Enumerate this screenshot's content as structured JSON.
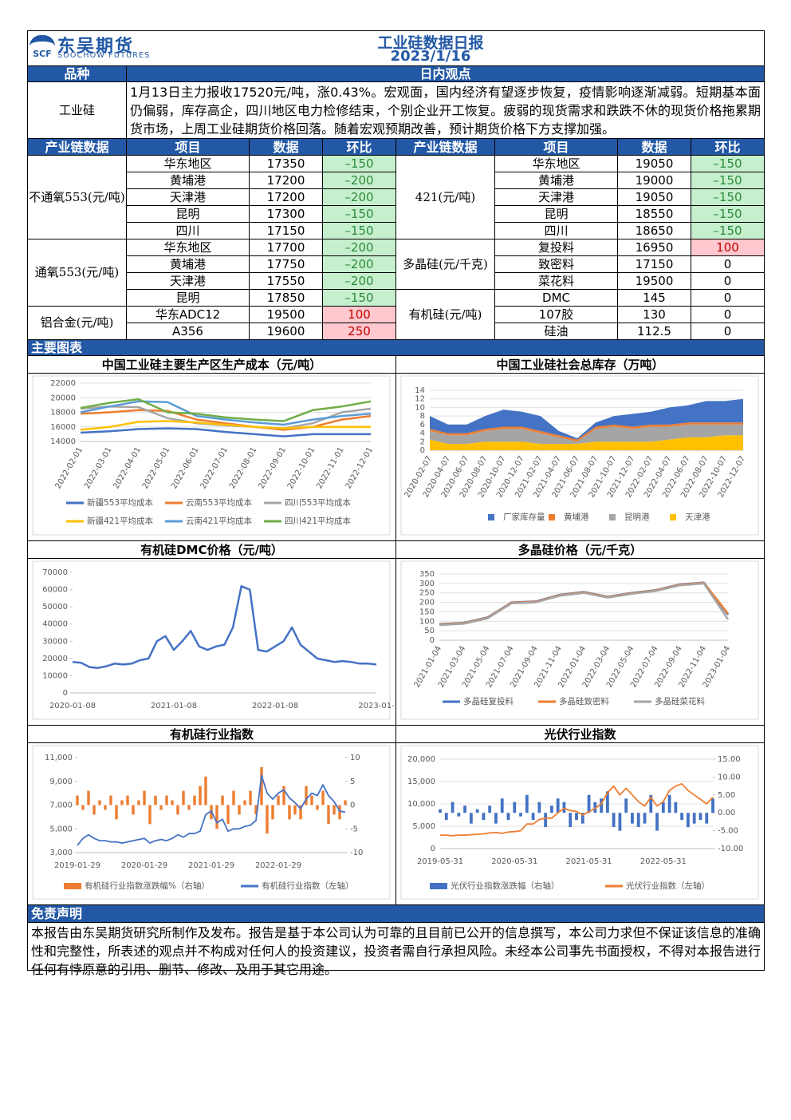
{
  "header": {
    "logo_mark": "SCF",
    "logo_cn": "东吴期货",
    "logo_en": "SOOCHOW FUTURES",
    "title": "工业硅数据日报",
    "date": "2023/1/16"
  },
  "sections": {
    "variety": "品种",
    "viewpoint": "日内观点",
    "charts": "主要图表",
    "disclaimer": "免责声明"
  },
  "viewpoint": {
    "product": "工业硅",
    "text": "1月13日主力报收17520元/吨，涨0.43%。宏观面，国内经济有望逐步恢复，疫情影响逐渐减弱。短期基本面仍偏弱，库存高企，四川地区电力检修结束，个别企业开工恢复。疲弱的现货需求和跌跌不休的现货价格拖累期货市场，上周工业硅期货价格回落。随着宏观预期改善，预计期货价格下方支撑加强。"
  },
  "table": {
    "headers": [
      "产业链数据",
      "项目",
      "数据",
      "环比"
    ],
    "left": [
      {
        "name": "不通氧553(元/吨)",
        "rows": [
          [
            "华东地区",
            17350,
            "–150"
          ],
          [
            "黄埔港",
            17200,
            "–200"
          ],
          [
            "天津港",
            17200,
            "–200"
          ],
          [
            "昆明",
            17300,
            "–150"
          ],
          [
            "四川",
            17150,
            "–150"
          ]
        ]
      },
      {
        "name": "通氧553(元/吨)",
        "rows": [
          [
            "华东地区",
            17700,
            "–200"
          ],
          [
            "黄埔港",
            17750,
            "–200"
          ],
          [
            "天津港",
            17550,
            "–200"
          ],
          [
            "昆明",
            17850,
            "–150"
          ]
        ]
      },
      {
        "name": "铝合金(元/吨)",
        "rows": [
          [
            "华东ADC12",
            19500,
            100
          ],
          [
            "A356",
            19600,
            250
          ]
        ]
      }
    ],
    "right": [
      {
        "name": "421(元/吨)",
        "rows": [
          [
            "华东地区",
            19050,
            "–150"
          ],
          [
            "黄埔港",
            19000,
            "–150"
          ],
          [
            "天津港",
            19050,
            "–150"
          ],
          [
            "昆明",
            18550,
            "–150"
          ],
          [
            "四川",
            18650,
            "–150"
          ]
        ]
      },
      {
        "name": "多晶硅(元/千克)",
        "rows": [
          [
            "复投料",
            16950,
            100
          ],
          [
            "致密料",
            17150,
            0
          ],
          [
            "菜花料",
            19500,
            0
          ]
        ]
      },
      {
        "name": "有机硅(元/吨)",
        "rows": [
          [
            "DMC",
            145,
            0
          ],
          [
            "107胶",
            130,
            0
          ],
          [
            "硅油",
            112.5,
            0
          ]
        ]
      }
    ]
  },
  "chart_data": [
    {
      "type": "line",
      "title": "中国工业硅主要生产区生产成本（元/吨）",
      "grid": true,
      "categories": [
        "2022-02-01",
        "2022-03-01",
        "2022-04-01",
        "2022-05-01",
        "2022-06-01",
        "2022-07-01",
        "2022-08-01",
        "2022-09-01",
        "2022-10-01",
        "2022-11-01",
        "2022-12-01"
      ],
      "ylim": [
        14000,
        22000
      ],
      "yticks": [
        14000,
        16000,
        18000,
        20000,
        22000
      ],
      "series": [
        {
          "name": "新疆553平均成本",
          "color": "#4472c4",
          "values": [
            15200,
            15400,
            15700,
            15800,
            15700,
            15300,
            15000,
            14700,
            15000,
            15000,
            15000
          ]
        },
        {
          "name": "云南553平均成本",
          "color": "#ed7d31",
          "values": [
            17800,
            18000,
            18300,
            18200,
            17000,
            16500,
            16000,
            15600,
            16000,
            17000,
            17500
          ]
        },
        {
          "name": "四川553平均成本",
          "color": "#a5a5a5",
          "values": [
            18500,
            18800,
            18700,
            17200,
            16500,
            16200,
            16000,
            15800,
            16500,
            18000,
            18500
          ]
        },
        {
          "name": "新疆421平均成本",
          "color": "#ffc000",
          "values": [
            15600,
            16000,
            16700,
            16800,
            16600,
            16300,
            16000,
            15800,
            16000,
            16000,
            16000
          ]
        },
        {
          "name": "云南421平均成本",
          "color": "#5b9bd5",
          "values": [
            18000,
            18800,
            19500,
            19400,
            17500,
            17000,
            16600,
            16300,
            17000,
            17500,
            17800
          ]
        },
        {
          "name": "四川421平均成本",
          "color": "#70ad47",
          "values": [
            18600,
            19300,
            19800,
            18000,
            17800,
            17300,
            17000,
            16800,
            18300,
            18800,
            19500
          ]
        }
      ]
    },
    {
      "type": "area",
      "stacked": true,
      "title": "中国工业硅社会总库存（万吨）",
      "grid": true,
      "categories": [
        "2020-02-07",
        "2020-04-07",
        "2020-06-07",
        "2020-08-07",
        "2020-10-07",
        "2020-12-07",
        "2021-02-07",
        "2021-04-07",
        "2021-06-07",
        "2021-08-07",
        "2021-10-07",
        "2021-12-07",
        "2022-02-07",
        "2022-04-07",
        "2022-06-07",
        "2022-08-07",
        "2022-10-07",
        "2022-12-07"
      ],
      "ylim": [
        0,
        14
      ],
      "yticks": [
        0,
        2,
        4,
        6,
        8,
        10,
        12,
        14
      ],
      "series": [
        {
          "name": "厂家库存量",
          "color": "#4472c4",
          "values": [
            3,
            2,
            2,
            3,
            4,
            3.5,
            3.5,
            1,
            0.3,
            1,
            2,
            3,
            3,
            4,
            4,
            5,
            5,
            5.5
          ]
        },
        {
          "name": "黄埔港",
          "color": "#ed7d31",
          "values": [
            0.5,
            0.5,
            0.5,
            0.5,
            0.5,
            0.5,
            0.5,
            0.5,
            0.5,
            0.5,
            0.5,
            0.5,
            0.5,
            0.5,
            0.5,
            0.5,
            0.5,
            0.5
          ]
        },
        {
          "name": "昆明港",
          "color": "#a5a5a5",
          "values": [
            2,
            2,
            2,
            2.5,
            3,
            3,
            2.5,
            1.5,
            0.5,
            3,
            3.5,
            3,
            3.5,
            3,
            3,
            3,
            2.5,
            2.5
          ]
        },
        {
          "name": "天津港",
          "color": "#ffc000",
          "values": [
            2.5,
            1.5,
            1.5,
            2,
            2,
            2,
            1.5,
            1.5,
            1.5,
            2,
            2,
            2,
            2,
            2.5,
            3,
            3,
            3.5,
            3.5
          ]
        }
      ]
    },
    {
      "type": "line",
      "title": "有机硅DMC价格（元/吨）",
      "grid": false,
      "categories": [
        "2020-01-08",
        null,
        null,
        null,
        null,
        null,
        null,
        null,
        null,
        null,
        null,
        null,
        "2021-01-08",
        null,
        null,
        null,
        null,
        null,
        null,
        null,
        null,
        null,
        null,
        null,
        "2022-01-08",
        null,
        null,
        null,
        null,
        null,
        null,
        null,
        null,
        null,
        null,
        null,
        "2023-01-"
      ],
      "ylim": [
        0,
        70000
      ],
      "yticks": [
        0,
        10000,
        20000,
        30000,
        40000,
        50000,
        60000,
        70000
      ],
      "series": [
        {
          "color": "#4472c4",
          "values": [
            18000,
            17500,
            15000,
            14500,
            15500,
            17000,
            16500,
            17000,
            19000,
            20000,
            30000,
            33000,
            25000,
            30000,
            36000,
            27000,
            25000,
            27000,
            28000,
            38000,
            62000,
            60000,
            25000,
            24000,
            27000,
            30000,
            38000,
            28000,
            24000,
            20000,
            19000,
            18000,
            18500,
            18000,
            17000,
            17000,
            16500
          ]
        }
      ]
    },
    {
      "type": "line",
      "title": "多晶硅价格（元/千克）",
      "grid": true,
      "categories": [
        "2021-01-04",
        "2021-03-04",
        "2021-05-04",
        "2021-07-04",
        "2021-09-04",
        "2021-11-04",
        "2022-01-04",
        "2022-03-04",
        "2022-05-04",
        "2022-07-04",
        "2022-09-04",
        "2022-11-04",
        "2023-01-04"
      ],
      "ylim": [
        0,
        350
      ],
      "yticks": [
        0,
        50,
        100,
        150,
        200,
        250,
        300,
        350
      ],
      "series": [
        {
          "name": "多晶硅复投料",
          "color": "#4472c4",
          "values": [
            85,
            92,
            120,
            200,
            205,
            240,
            255,
            230,
            250,
            265,
            295,
            305,
            135
          ]
        },
        {
          "name": "多晶硅致密料",
          "color": "#ed7d31",
          "values": [
            83,
            90,
            118,
            198,
            203,
            238,
            253,
            228,
            248,
            263,
            293,
            303,
            140
          ]
        },
        {
          "name": "多晶硅菜花料",
          "color": "#a5a5a5",
          "values": [
            80,
            87,
            115,
            195,
            200,
            235,
            250,
            225,
            245,
            260,
            290,
            300,
            110
          ]
        }
      ]
    },
    {
      "type": "combo",
      "title": "有机硅行业指数",
      "grid": false,
      "categories": [
        "2019-01-29",
        null,
        null,
        null,
        null,
        null,
        null,
        null,
        null,
        null,
        null,
        null,
        "2020-01-29",
        null,
        null,
        null,
        null,
        null,
        null,
        null,
        null,
        null,
        null,
        null,
        "2021-01-29",
        null,
        null,
        null,
        null,
        null,
        null,
        null,
        null,
        null,
        null,
        null,
        "2022-01-29",
        null,
        null,
        null,
        null,
        null,
        null,
        null,
        null,
        null,
        null,
        null,
        null
      ],
      "ylim": [
        3000,
        11000
      ],
      "yticks": [
        {
          "value": 3000,
          "label": "3,000"
        },
        {
          "value": 5000,
          "label": "5,000"
        },
        {
          "value": 7000,
          "label": "7,000"
        },
        {
          "value": 9000,
          "label": "9,000"
        },
        {
          "value": 11000,
          "label": "11,000"
        }
      ],
      "y2lim": [
        -10,
        10
      ],
      "y2ticks": [
        -10,
        -5,
        0,
        5,
        10
      ],
      "series": [
        {
          "name": "有机硅行业指数涨跌幅%（右轴）",
          "type": "bar",
          "axis": "y2",
          "color": "#ed7d31",
          "values": [
            2,
            -1,
            3,
            -2,
            1,
            -1,
            2,
            -3,
            1,
            2,
            -2,
            1,
            3,
            -4,
            2,
            -1,
            2,
            1,
            -2,
            3,
            -1,
            2,
            4,
            6,
            -3,
            -5,
            2,
            -4,
            3,
            -2,
            1,
            3,
            -2,
            8,
            -6,
            -3,
            2,
            4,
            -3,
            -2,
            -3,
            4,
            2,
            -1,
            3,
            -4,
            -2,
            -3,
            1
          ]
        },
        {
          "name": "有机硅行业指数（左轴）",
          "type": "line",
          "color": "#4472c4",
          "values": [
            3600,
            4200,
            4500,
            4200,
            4000,
            4000,
            3900,
            3900,
            3800,
            3900,
            4000,
            4100,
            4200,
            3800,
            4000,
            4100,
            4000,
            4200,
            4500,
            4300,
            4600,
            4600,
            4800,
            6200,
            6500,
            5500,
            5800,
            4800,
            5000,
            5000,
            5200,
            5300,
            5700,
            9500,
            8000,
            7500,
            8000,
            8300,
            7600,
            7200,
            6700,
            7500,
            8000,
            7800,
            8700,
            7800,
            7300,
            6500,
            6400
          ]
        }
      ]
    },
    {
      "type": "combo",
      "title": "光伏行业指数",
      "grid": true,
      "categories": [
        "2019-05-31",
        null,
        null,
        null,
        null,
        null,
        null,
        null,
        null,
        null,
        null,
        null,
        "2020-05-31",
        null,
        null,
        null,
        null,
        null,
        null,
        null,
        null,
        null,
        null,
        null,
        "2021-05-31",
        null,
        null,
        null,
        null,
        null,
        null,
        null,
        null,
        null,
        null,
        null,
        "2022-05-31",
        null,
        null,
        null,
        null,
        null,
        null,
        null,
        null
      ],
      "ylim": [
        0,
        20000
      ],
      "yticks": [
        0,
        {
          "value": 5000,
          "label": "5,000"
        },
        {
          "value": 10000,
          "label": "10,000"
        },
        {
          "value": 15000,
          "label": "15,000"
        },
        {
          "value": 20000,
          "label": "20,000"
        }
      ],
      "y2lim": [
        -10,
        15
      ],
      "y2ticks": [
        {
          "value": -10,
          "label": "-10.00"
        },
        {
          "value": -5,
          "label": "-5.00"
        },
        {
          "value": 0,
          "label": "0.00"
        },
        {
          "value": 5,
          "label": "5.00"
        },
        {
          "value": 10,
          "label": "10.00"
        },
        {
          "value": 15,
          "label": "15.00"
        }
      ],
      "series": [
        {
          "name": "光伏行业指数涨跌幅（右轴）",
          "type": "bar",
          "axis": "y2",
          "color": "#4472c4",
          "values": [
            1,
            -2,
            3,
            -1,
            2,
            -3,
            1,
            -2,
            2,
            -3,
            4,
            -2,
            3,
            -1,
            5,
            -2,
            3,
            -4,
            2,
            4,
            3,
            -4,
            -2,
            -3,
            5,
            3,
            4,
            6,
            -4,
            -5,
            4,
            -3,
            -4,
            -3,
            5,
            -5,
            3,
            5,
            3,
            -2,
            -4,
            -3,
            -2,
            -3,
            4
          ]
        },
        {
          "name": "光伏行业指数（左轴）",
          "type": "line",
          "color": "#ed7d31",
          "values": [
            3000,
            3000,
            2900,
            3000,
            3000,
            3100,
            3200,
            3300,
            3500,
            3600,
            3400,
            3700,
            3800,
            4000,
            5500,
            5500,
            6500,
            6800,
            6800,
            8000,
            9000,
            8500,
            8300,
            7500,
            8200,
            9000,
            10000,
            12500,
            14000,
            12000,
            13500,
            12000,
            10500,
            9500,
            11500,
            9500,
            10500,
            13000,
            14000,
            14500,
            13000,
            12000,
            11000,
            10000,
            11500
          ]
        }
      ]
    }
  ],
  "disclaimer": "本报告由东吴期货研究所制作及发布。报告是基于本公司认为可靠的且目前已公开的信息撰写，本公司力求但不保证该信息的准确性和完整性，所表述的观点并不构成对任何人的投资建议，投资者需自行承担风险。未经本公司事先书面授权，不得对本报告进行任何有悖原意的引用、删节、修改、及用于其它用途。"
}
